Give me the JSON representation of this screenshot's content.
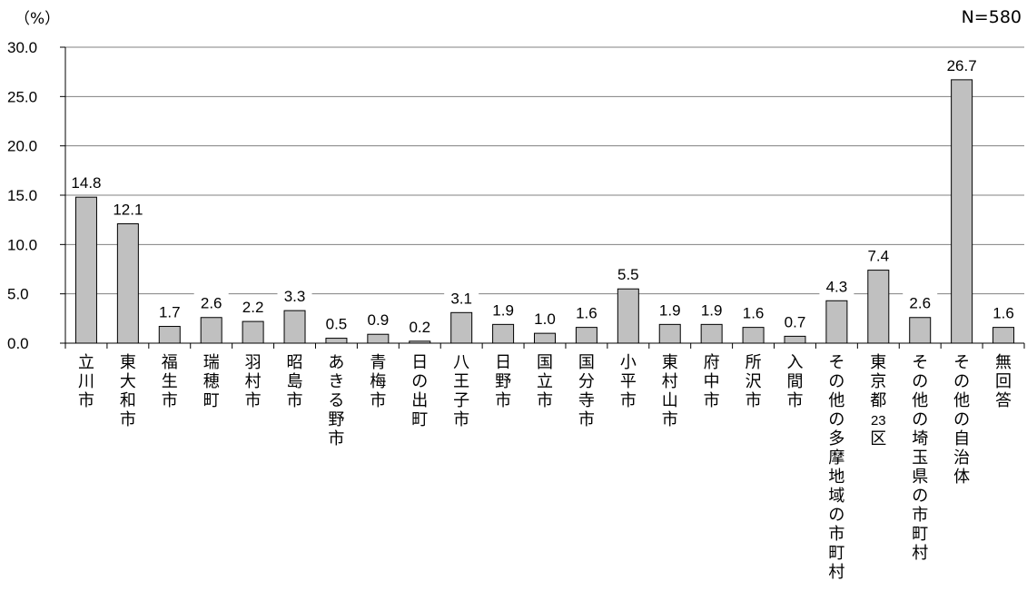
{
  "unit_label": "（%）",
  "sample_size": "N=580",
  "chart_data": {
    "type": "bar",
    "title": "",
    "xlabel": "",
    "ylabel": "（%）",
    "ylim": [
      0,
      30
    ],
    "yticks": [
      "0.0",
      "5.0",
      "10.0",
      "15.0",
      "20.0",
      "25.0",
      "30.0"
    ],
    "grid": true,
    "categories": [
      "立川市",
      "東大和市",
      "福生市",
      "瑞穂町",
      "羽村市",
      "昭島市",
      "あきる野市",
      "青梅市",
      "日の出町",
      "八王子市",
      "日野市",
      "国立市",
      "国分寺市",
      "小平市",
      "東村山市",
      "府中市",
      "所沢市",
      "入間市",
      "その他の多摩地域の市町村",
      "東京都23区",
      "その他の埼玉県の市町村",
      "その他の自治体",
      "無回答"
    ],
    "category_labels": [
      "立川市",
      "東大和市",
      "福生市",
      "瑞穂町",
      "羽村市",
      "昭島市",
      "あきる野市",
      "青梅市",
      "日の出町",
      "八王子市",
      "日野市",
      "国立市",
      "国分寺市",
      "小平市",
      "東村山市",
      "府中市",
      "所沢市",
      "入間市",
      "その他の多摩地域の市町村",
      "東京都23区",
      "その他の埼玉県の市町村",
      "その他の自治体",
      "無回答"
    ],
    "values": [
      14.8,
      12.1,
      1.7,
      2.6,
      2.2,
      3.3,
      0.5,
      0.9,
      0.2,
      3.1,
      1.9,
      1.0,
      1.6,
      5.5,
      1.9,
      1.9,
      1.6,
      0.7,
      4.3,
      7.4,
      2.6,
      26.7,
      1.6
    ],
    "value_labels": [
      "14.8",
      "12.1",
      "1.7",
      "2.6",
      "2.2",
      "3.3",
      "0.5",
      "0.9",
      "0.2",
      "3.1",
      "1.9",
      "1.0",
      "1.6",
      "5.5",
      "1.9",
      "1.9",
      "1.6",
      "0.7",
      "4.3",
      "7.4",
      "2.6",
      "26.7",
      "1.6"
    ],
    "bar_color": "#c0c0c0",
    "bar_border": "#000000",
    "grid_color": "#808080"
  }
}
